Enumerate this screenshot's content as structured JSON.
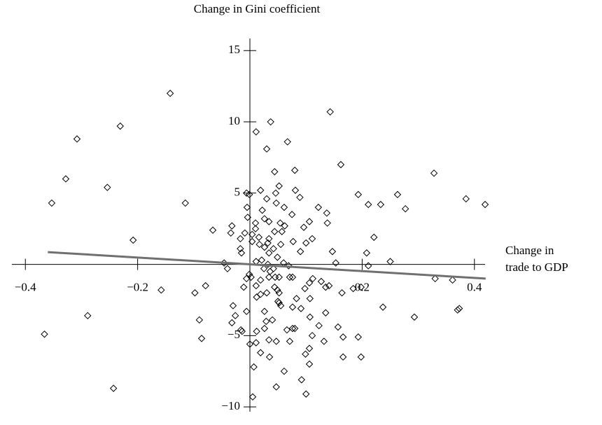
{
  "chart_data": {
    "type": "scatter",
    "y_label": "Change in Gini coefficient",
    "x_label": [
      "Change in",
      "trade to GDP"
    ],
    "xlim": [
      -0.424,
      0.419
    ],
    "ylim": [
      -10.34,
      15.85
    ],
    "xticks": [
      {
        "value": -0.4,
        "label": "−0.4"
      },
      {
        "value": -0.2,
        "label": "−0.2"
      },
      0.2,
      0.4
    ],
    "yticks": [
      {
        "value": -10,
        "label": "−10"
      },
      {
        "value": -5,
        "label": "−5"
      },
      5,
      10,
      15
    ],
    "color": "#000000",
    "x": [
      -0.353,
      -0.308,
      -0.328,
      -0.366,
      -0.289,
      -0.231,
      -0.254,
      -0.243,
      -0.142,
      -0.208,
      -0.158,
      -0.115,
      -0.098,
      -0.079,
      -0.09,
      -0.086,
      -0.066,
      -0.046,
      -0.04,
      -0.032,
      -0.034,
      -0.017,
      -0.017,
      -0.015,
      -0.006,
      -0.005,
      -0.004,
      -0.009,
      -0.03,
      -0.032,
      -0.026,
      -0.016,
      -0.014,
      -0.011,
      -0.006,
      -0.001,
      -0.006,
      0.002,
      0.0,
      0.007,
      0.005,
      0.011,
      0.019,
      0.03,
      0.022,
      0.026,
      0.037,
      0.03,
      0.044,
      0.052,
      0.067,
      0.08,
      0.047,
      0.061,
      0.081,
      0.089,
      0.075,
      0.054,
      0.062,
      0.057,
      0.044,
      0.034,
      0.01,
      0.017,
      0.026,
      0.032,
      0.042,
      0.049,
      0.06,
      0.069,
      0.077,
      0.09,
      0.096,
      0.106,
      0.111,
      0.1,
      0.122,
      0.137,
      0.138,
      0.143,
      0.162,
      0.147,
      0.153,
      0.112,
      0.106,
      0.127,
      0.141,
      0.135,
      0.164,
      0.184,
      0.198,
      0.208,
      0.211,
      0.193,
      0.211,
      0.233,
      0.221,
      0.263,
      0.277,
      0.25,
      0.237,
      0.293,
      0.328,
      0.33,
      0.361,
      0.37,
      0.373,
      0.385,
      0.419,
      0.193,
      0.198,
      0.166,
      0.166,
      0.157,
      0.132,
      0.123,
      0.111,
      0.106,
      0.106,
      0.099,
      0.092,
      0.1,
      0.08,
      0.076,
      0.066,
      0.071,
      0.061,
      0.047,
      0.047,
      0.034,
      0.026,
      0.012,
      0.011,
      0.019,
      0.035,
      0.026,
      0.029,
      0.04,
      0.055,
      0.05,
      0.052,
      0.052,
      0.049,
      0.044,
      0.03,
      0.019,
      0.011,
      0.012,
      0.019,
      0.034,
      0.045,
      0.071,
      0.076,
      0.098,
      0.091,
      0.107,
      0.135,
      0.107,
      0.083,
      0.076,
      0.052,
      0.036,
      0.042,
      0.032,
      0.025,
      0.021,
      0.011,
      0.004,
      0.01,
      0.016,
      0.034,
      0.055,
      -0.001,
      0.004,
      0.046,
      0.034
    ],
    "y": [
      4.3,
      8.8,
      6.0,
      -4.9,
      -3.6,
      9.7,
      5.4,
      -8.7,
      12.0,
      1.7,
      -1.8,
      4.3,
      -2.0,
      -1.5,
      -3.9,
      -5.2,
      2.4,
      0.1,
      -0.3,
      2.7,
      2.2,
      1.8,
      1.1,
      0.8,
      5.0,
      4.0,
      3.3,
      2.2,
      -2.9,
      -4.1,
      -3.6,
      -4.6,
      -4.7,
      -1.6,
      -1.0,
      -0.7,
      -3.3,
      -0.9,
      -5.6,
      -7.2,
      -9.3,
      9.3,
      5.2,
      4.6,
      3.8,
      3.2,
      10.0,
      8.1,
      6.5,
      5.5,
      8.6,
      6.6,
      4.3,
      4.0,
      5.2,
      4.7,
      3.5,
      2.9,
      2.7,
      2.3,
      2.3,
      1.8,
      2.5,
      1.4,
      1.2,
      1.5,
      1.1,
      0.5,
      0.1,
      -0.1,
      1.6,
      0.9,
      2.6,
      3.0,
      1.8,
      1.5,
      4.0,
      3.6,
      2.9,
      10.7,
      7.0,
      0.9,
      0.1,
      -1.0,
      -1.3,
      -1.2,
      -1.5,
      -1.6,
      -2.0,
      -1.7,
      -1.6,
      0.8,
      -0.1,
      4.9,
      4.2,
      4.2,
      1.9,
      4.9,
      3.9,
      0.2,
      -3.0,
      -3.7,
      6.4,
      -1.0,
      -1.1,
      -3.2,
      -3.1,
      4.6,
      4.2,
      -5.1,
      -6.5,
      -6.5,
      -5.1,
      -4.4,
      -5.4,
      -4.3,
      -5.0,
      -5.9,
      -7.0,
      -6.3,
      -8.1,
      -9.1,
      -4.5,
      -4.5,
      -4.6,
      -5.4,
      -7.5,
      -8.6,
      -5.4,
      -5.3,
      -4.5,
      -4.7,
      -5.5,
      -6.2,
      -6.5,
      -3.3,
      -4.0,
      -3.9,
      -2.9,
      -2.6,
      -2.7,
      -2.0,
      -1.8,
      -1.6,
      -2.0,
      -2.1,
      -1.5,
      -2.3,
      -1.1,
      -0.9,
      -0.9,
      -0.9,
      -0.9,
      -1.7,
      -3.1,
      -3.7,
      -3.4,
      -2.4,
      -2.4,
      -3.0,
      -0.9,
      -0.5,
      -0.3,
      0.0,
      -0.3,
      0.3,
      0.2,
      1.6,
      2.9,
      1.9,
      0.8,
      1.4,
      4.9,
      2.1,
      5.0,
      3.0
    ],
    "trend_line": {
      "x": [
        -0.36,
        0.42
      ],
      "values": [
        0.86,
        -1.0
      ],
      "color": "#707070"
    }
  }
}
